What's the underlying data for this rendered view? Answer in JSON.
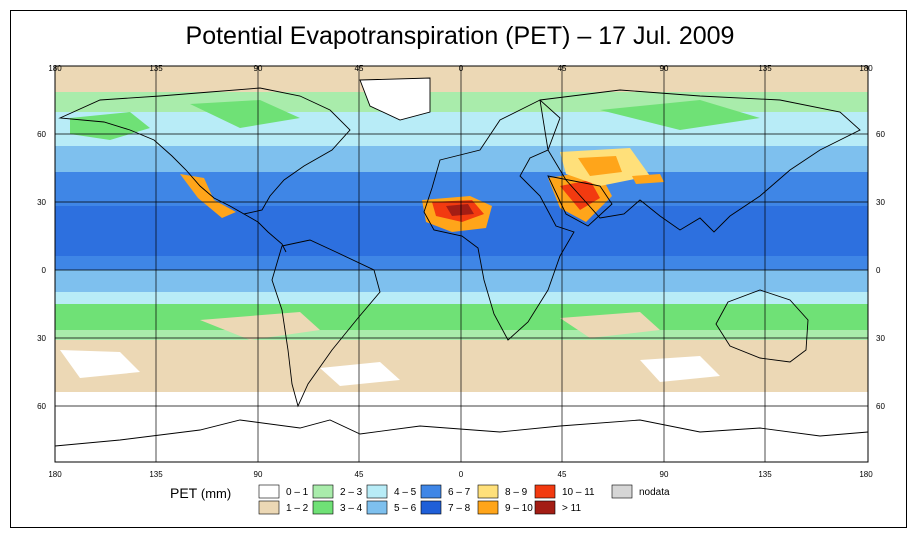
{
  "title": "Potential Evapotranspiration (PET) – 17 Jul. 2009",
  "map": {
    "lon_ticks_top": [
      "180",
      "135",
      "90",
      "45",
      "0",
      "45",
      "90",
      "135",
      "180"
    ],
    "lon_ticks_bottom": [
      "180",
      "135",
      "90",
      "45",
      "0",
      "45",
      "90",
      "135",
      "180"
    ],
    "lat_ticks_left": [
      "60",
      "30",
      "0",
      "30",
      "60"
    ],
    "lat_ticks_right": [
      "60",
      "30",
      "0",
      "30",
      "60"
    ]
  },
  "legend": {
    "title": "PET",
    "unit": "(mm)",
    "items": [
      {
        "label": "0 – 1",
        "color": "#ffffff"
      },
      {
        "label": "1 – 2",
        "color": "#ecd8b5"
      },
      {
        "label": "2 – 3",
        "color": "#a9ecab"
      },
      {
        "label": "3 – 4",
        "color": "#6fe176"
      },
      {
        "label": "4 – 5",
        "color": "#b8ecf7"
      },
      {
        "label": "5 – 6",
        "color": "#7ec0ee"
      },
      {
        "label": "6 – 7",
        "color": "#3f86e6"
      },
      {
        "label": "7 – 8",
        "color": "#1f5fd8"
      },
      {
        "label": "8 – 9",
        "color": "#ffe07a"
      },
      {
        "label": "9 – 10",
        "color": "#ffa51a"
      },
      {
        "label": "10 – 11",
        "color": "#f23a10"
      },
      {
        "label": "> 11",
        "color": "#a31d14"
      },
      {
        "label": "nodata",
        "color": "#d6d6d6"
      }
    ]
  },
  "colors": {
    "ocean_tropical": "#3f86e6",
    "ocean_mid": "#7ec0ee",
    "land_outline": "#000000",
    "grid": "#000000"
  }
}
